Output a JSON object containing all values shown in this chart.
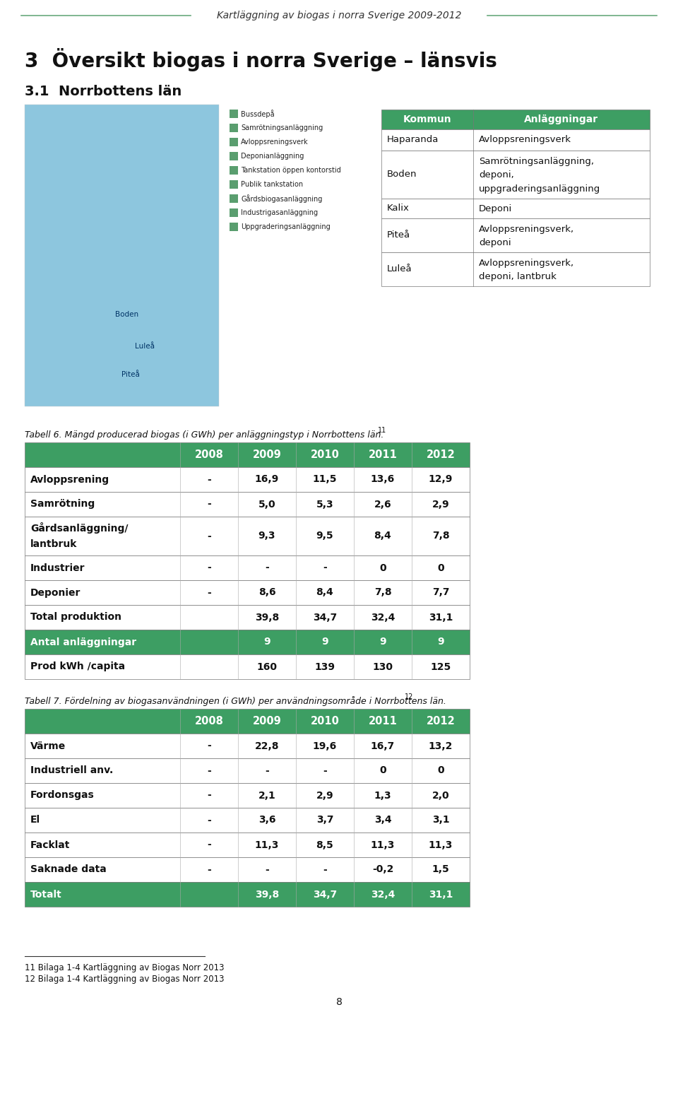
{
  "page_title": "Kartläggning av biogas i norra Sverige 2009-2012",
  "section_title": "3  Översikt biogas i norra Sverige – länsvis",
  "subsection_title": "3.1  Norrbottens län",
  "legend_items": [
    "Bussdepå",
    "Samrötningsanläggning",
    "Avloppsreningsverk",
    "Deponianläggning",
    "Tankstation öppen kontorstid",
    "Publik tankstation",
    "Gårdsbiogasanläggning",
    "Industrigasanläggning",
    "Uppgraderingsanläggning"
  ],
  "info_headers": [
    "Kommun",
    "Anläggningar"
  ],
  "info_rows": [
    [
      "Haparanda",
      "Avloppsreningsverk"
    ],
    [
      "Boden",
      "Samrötningsanläggning,\ndeponi,\nuppgraderingsanläggning"
    ],
    [
      "Kalix",
      "Deponi"
    ],
    [
      "Piteå",
      "Avloppsreningsverk,\ndeponi"
    ],
    [
      "Luleå",
      "Avloppsreningsverk,\ndeponi, lantbruk"
    ]
  ],
  "tabell6_caption": "Tabell 6. Mängd producerad biogas (i GWh) per anläggningstyp i Norrbottens län.",
  "tabell6_sup": "11",
  "tabell6_headers": [
    "",
    "2008",
    "2009",
    "2010",
    "2011",
    "2012"
  ],
  "tabell6_rows": [
    [
      "Avloppsrening",
      "-",
      "16,9",
      "11,5",
      "13,6",
      "12,9"
    ],
    [
      "Samrötning",
      "-",
      "5,0",
      "5,3",
      "2,6",
      "2,9"
    ],
    [
      "Gårdsanläggning/\nlantbruk",
      "-",
      "9,3",
      "9,5",
      "8,4",
      "7,8"
    ],
    [
      "Industrier",
      "-",
      "-",
      "-",
      "0",
      "0"
    ],
    [
      "Deponier",
      "-",
      "8,6",
      "8,4",
      "7,8",
      "7,7"
    ],
    [
      "Total produktion",
      "",
      "39,8",
      "34,7",
      "32,4",
      "31,1"
    ],
    [
      "Antal anläggningar",
      "",
      "9",
      "9",
      "9",
      "9"
    ],
    [
      "Prod kWh /capita",
      "",
      "160",
      "139",
      "130",
      "125"
    ]
  ],
  "tabell6_green_row": 6,
  "tabell7_caption": "Tabell 7. Fördelning av biogasanvändningen (i GWh) per användningsområde i Norrbottens län.",
  "tabell7_sup": "12",
  "tabell7_headers": [
    "",
    "2008",
    "2009",
    "2010",
    "2011",
    "2012"
  ],
  "tabell7_rows": [
    [
      "Värme",
      "-",
      "22,8",
      "19,6",
      "16,7",
      "13,2"
    ],
    [
      "Industriell anv.",
      "-",
      "-",
      "-",
      "0",
      "0"
    ],
    [
      "Fordonsgas",
      "-",
      "2,1",
      "2,9",
      "1,3",
      "2,0"
    ],
    [
      "El",
      "-",
      "3,6",
      "3,7",
      "3,4",
      "3,1"
    ],
    [
      "Facklat",
      "-",
      "11,3",
      "8,5",
      "11,3",
      "11,3"
    ],
    [
      "Saknade data",
      "-",
      "-",
      "-",
      "-0,2",
      "1,5"
    ],
    [
      "Totalt",
      "",
      "39,8",
      "34,7",
      "32,4",
      "31,1"
    ]
  ],
  "tabell7_green_row": 6,
  "footnote1": "11 Bilaga 1-4 Kartläggning av Biogas Norr 2013",
  "footnote2": "12 Bilaga 1-4 Kartläggning av Biogas Norr 2013",
  "page_number": "8",
  "green": "#3d9e63",
  "white": "#ffffff",
  "black": "#111111",
  "light_line": "#6aaa7e",
  "map_blue": "#8dc6de",
  "border": "#777777"
}
